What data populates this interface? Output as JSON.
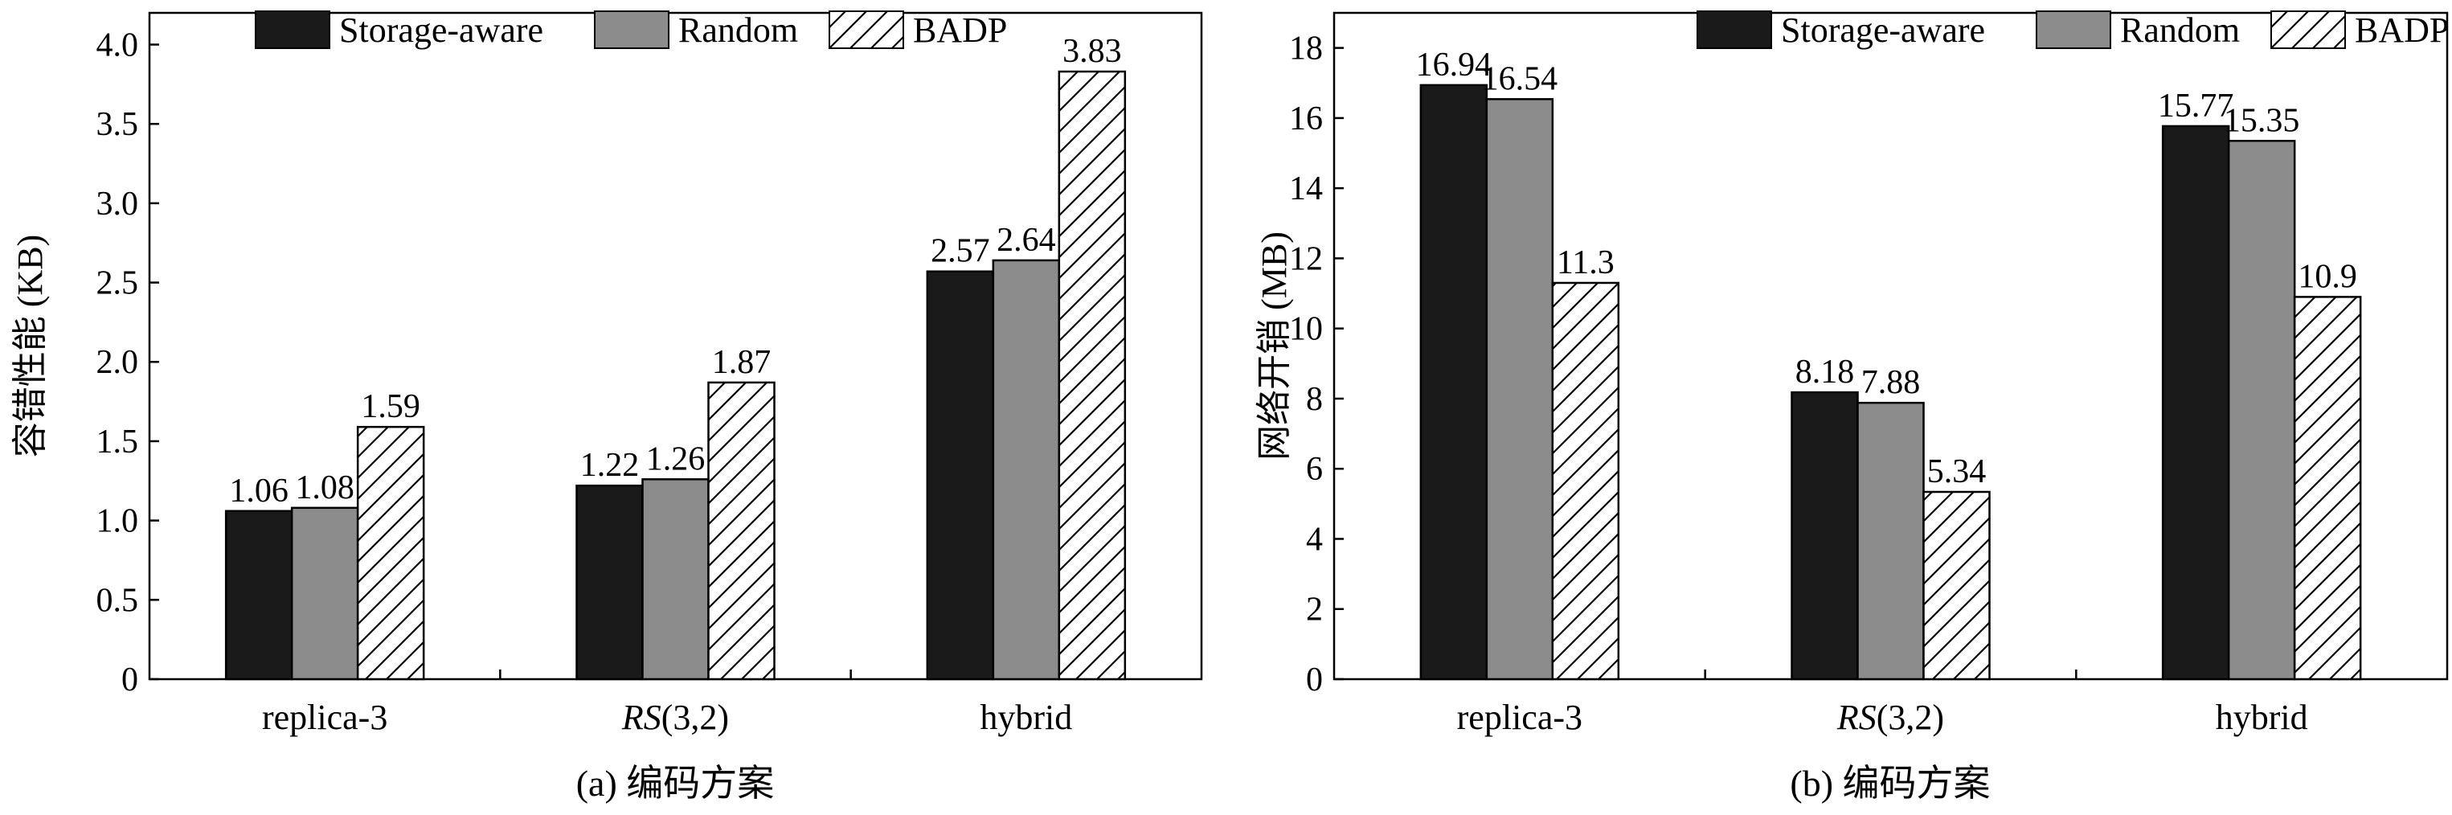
{
  "colors": {
    "storage_aware": "#1a1a1a",
    "random": "#8c8c8c",
    "badp": "#ffffff",
    "hatch": "#000000",
    "axis": "#000000"
  },
  "legend": [
    "Storage-aware",
    "Random",
    "BADP"
  ],
  "chart_data": [
    {
      "type": "bar",
      "title": "",
      "caption": "(a) 编码方案",
      "xlabel": "",
      "ylabel": "容错性能 (KB)",
      "categories": [
        "replica-3",
        "RS(3,2)",
        "hybrid"
      ],
      "ylim": [
        0,
        4.2
      ],
      "yticks": [
        0,
        0.5,
        1.0,
        1.5,
        2.0,
        2.5,
        3.0,
        3.5,
        4.0
      ],
      "ytick_labels": [
        "0",
        "0.5",
        "1.0",
        "1.5",
        "2.0",
        "2.5",
        "3.0",
        "3.5",
        "4.0"
      ],
      "legend_position": "top",
      "grid": false,
      "series": [
        {
          "name": "Storage-aware",
          "values": [
            1.06,
            1.22,
            2.57
          ],
          "labels": [
            "1.06",
            "1.22",
            "2.57"
          ]
        },
        {
          "name": "Random",
          "values": [
            1.08,
            1.26,
            2.64
          ],
          "labels": [
            "1.08",
            "1.26",
            "2.64"
          ]
        },
        {
          "name": "BADP",
          "values": [
            1.59,
            1.87,
            3.83
          ],
          "labels": [
            "1.59",
            "1.87",
            "3.83"
          ]
        }
      ]
    },
    {
      "type": "bar",
      "title": "",
      "caption": "(b) 编码方案",
      "xlabel": "",
      "ylabel": "网络开销 (MB)",
      "categories": [
        "replica-3",
        "RS(3,2)",
        "hybrid"
      ],
      "ylim": [
        0,
        19
      ],
      "yticks": [
        0,
        2,
        4,
        6,
        8,
        10,
        12,
        14,
        16,
        18
      ],
      "ytick_labels": [
        "0",
        "2",
        "4",
        "6",
        "8",
        "10",
        "12",
        "14",
        "16",
        "18"
      ],
      "legend_position": "top",
      "grid": false,
      "series": [
        {
          "name": "Storage-aware",
          "values": [
            16.94,
            8.18,
            15.77
          ],
          "labels": [
            "16.94",
            "8.18",
            "15.77"
          ]
        },
        {
          "name": "Random",
          "values": [
            16.54,
            7.88,
            15.35
          ],
          "labels": [
            "16.54",
            "7.88",
            "15.35"
          ]
        },
        {
          "name": "BADP",
          "values": [
            11.3,
            5.34,
            10.9
          ],
          "labels": [
            "11.3",
            "5.34",
            "10.9"
          ]
        }
      ]
    }
  ]
}
